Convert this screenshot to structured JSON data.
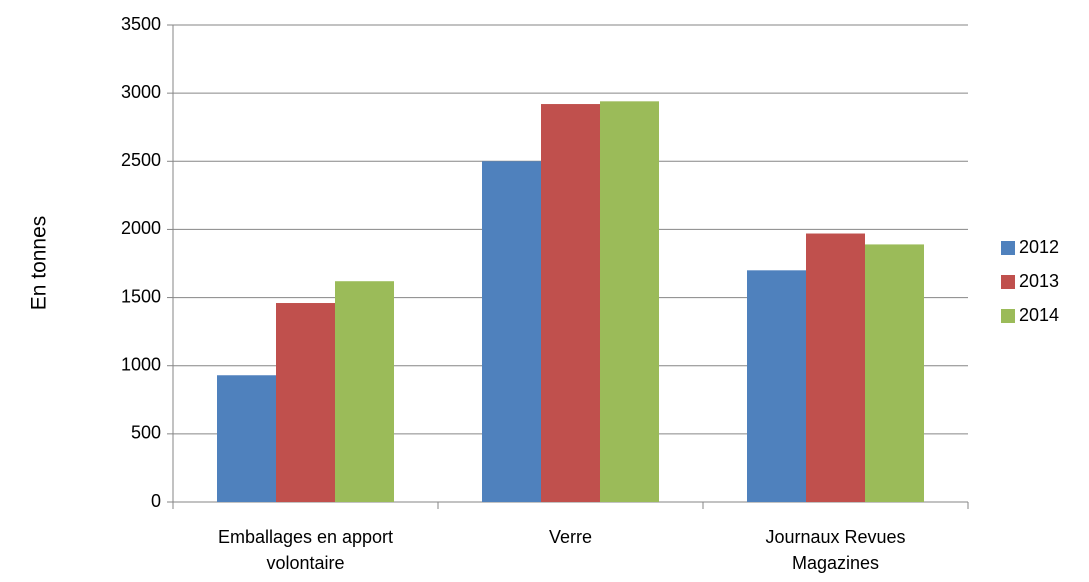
{
  "chart_data": {
    "type": "bar",
    "y_label": "En tonnes",
    "categories": [
      "Emballages en apport volontaire",
      "Verre",
      "Journaux Revues Magazines"
    ],
    "series": [
      {
        "name": "2012",
        "color": "#4f81bd",
        "values": [
          930,
          2500,
          1700
        ]
      },
      {
        "name": "2013",
        "color": "#c0504d",
        "values": [
          1460,
          2920,
          1970
        ]
      },
      {
        "name": "2014",
        "color": "#9bbb59",
        "values": [
          1620,
          2940,
          1890
        ]
      }
    ],
    "ylim": [
      0,
      3500
    ],
    "yticks": [
      0,
      500,
      1000,
      1500,
      2000,
      2500,
      3000,
      3500
    ],
    "grid": true,
    "legend": "right"
  }
}
